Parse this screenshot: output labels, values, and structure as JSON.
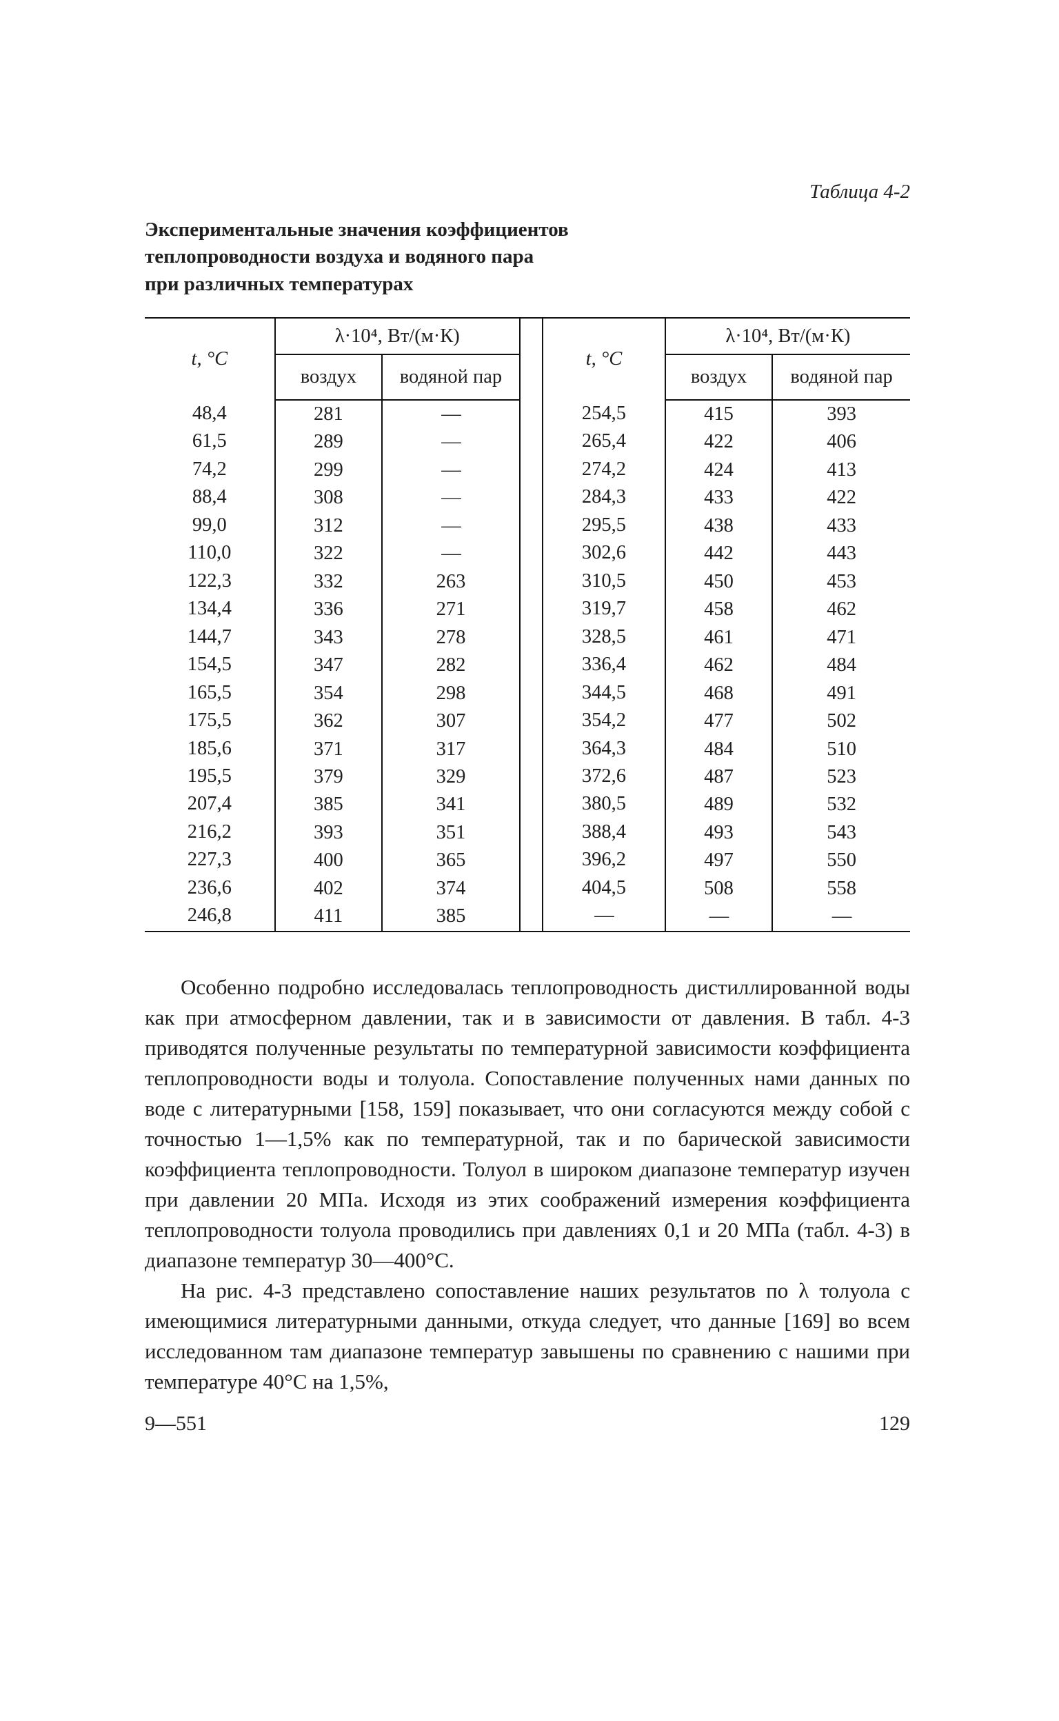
{
  "table_label": "Таблица 4-2",
  "title_line1": "Экспериментальные значения коэффициентов",
  "title_line2": "теплопроводности воздуха и водяного пара",
  "title_line3": "при различных температурах",
  "hdr_t": "t, °C",
  "hdr_lambda": "λ·10⁴, Вт/(м·К)",
  "hdr_air": "воздух",
  "hdr_vapor": "водяной пар",
  "left": {
    "t": [
      "48,4",
      "61,5",
      "74,2",
      "88,4",
      "99,0",
      "110,0",
      "122,3",
      "134,4",
      "144,7",
      "154,5",
      "165,5",
      "175,5",
      "185,6",
      "195,5",
      "207,4",
      "216,2",
      "227,3",
      "236,6",
      "246,8"
    ],
    "air": [
      "281",
      "289",
      "299",
      "308",
      "312",
      "322",
      "332",
      "336",
      "343",
      "347",
      "354",
      "362",
      "371",
      "379",
      "385",
      "393",
      "400",
      "402",
      "411"
    ],
    "vap": [
      "—",
      "—",
      "—",
      "—",
      "—",
      "—",
      "263",
      "271",
      "278",
      "282",
      "298",
      "307",
      "317",
      "329",
      "341",
      "351",
      "365",
      "374",
      "385"
    ]
  },
  "right": {
    "t": [
      "254,5",
      "265,4",
      "274,2",
      "284,3",
      "295,5",
      "302,6",
      "310,5",
      "319,7",
      "328,5",
      "336,4",
      "344,5",
      "354,2",
      "364,3",
      "372,6",
      "380,5",
      "388,4",
      "396,2",
      "404,5",
      "—"
    ],
    "air": [
      "415",
      "422",
      "424",
      "433",
      "438",
      "442",
      "450",
      "458",
      "461",
      "462",
      "468",
      "477",
      "484",
      "487",
      "489",
      "493",
      "497",
      "508",
      "—"
    ],
    "vap": [
      "393",
      "406",
      "413",
      "422",
      "433",
      "443",
      "453",
      "462",
      "471",
      "484",
      "491",
      "502",
      "510",
      "523",
      "532",
      "543",
      "550",
      "558",
      "—"
    ]
  },
  "para1": "Особенно подробно исследовалась теплопроводность дистиллированной воды как при атмосферном давлении, так и в зависимости от давления. В табл. 4-3 приводятся полученные результаты по температурной зависимости коэффициента теплопроводности воды и толуола. Сопоставление полученных нами данных по воде с литературными [158, 159] показывает, что они согласуются между собой с точностью 1—1,5% как по температурной, так и по барической зависимости коэффициента теплопроводности. Толуол в широком диапазоне температур изучен при давлении 20 МПа. Исходя из этих соображений измерения коэффициента теплопроводности толуола проводились при давлениях 0,1 и 20 МПа (табл. 4-3) в диапазоне температур 30—400°C.",
  "para2": "На рис. 4-3 представлено сопоставление наших результатов по λ толуола с имеющимися литературными данными, откуда следует, что данные [169] во всем исследованном там диапазоне температур завышены по сравнению с нашими при температуре 40°C на 1,5%,",
  "sig": "9—551",
  "page_no": "129"
}
